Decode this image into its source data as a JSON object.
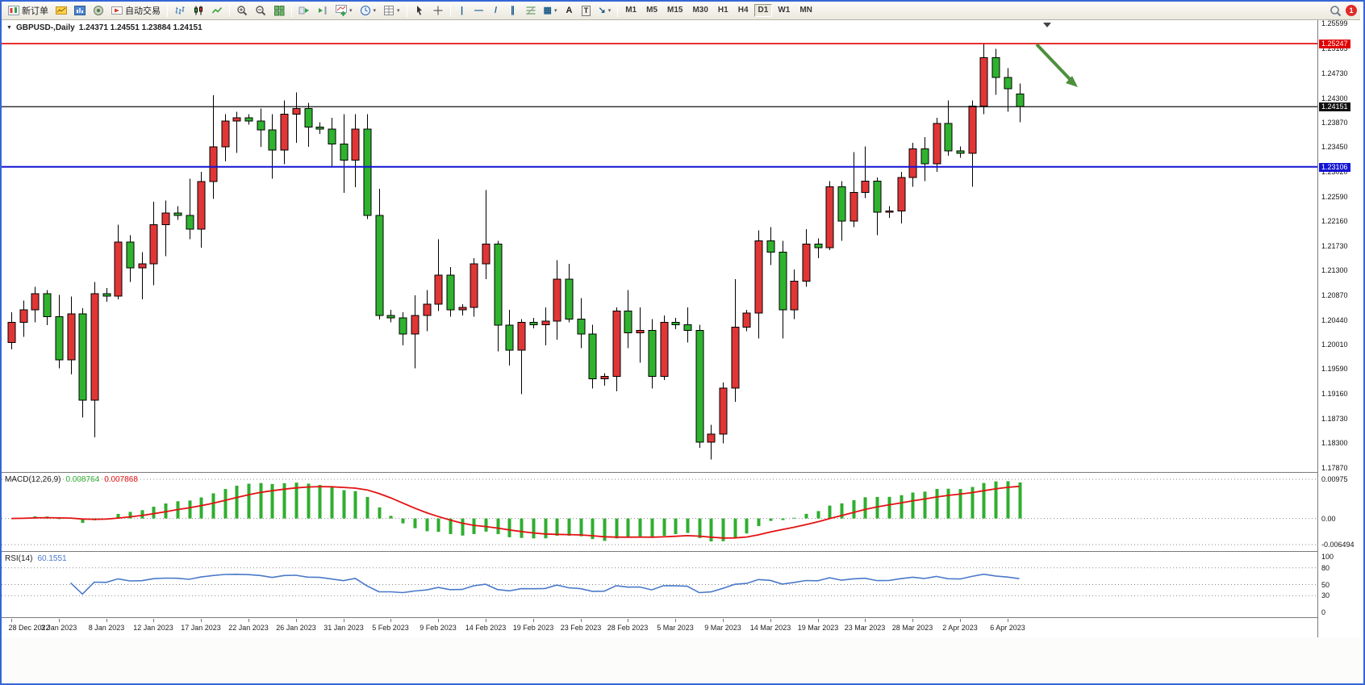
{
  "toolbar": {
    "new_order_label": "新订单",
    "auto_trading_label": "自动交易",
    "timeframes": [
      "M1",
      "M5",
      "M15",
      "M30",
      "H1",
      "H4",
      "D1",
      "W1",
      "MN"
    ],
    "active_timeframe": "D1",
    "notification_count": "1"
  },
  "icons": {
    "menu_triangle": "▼",
    "caret": "▾",
    "vertical_line": "|",
    "horizontal_line": "—",
    "trendline": "/",
    "channel": "∥",
    "shapes": "▦",
    "text": "A",
    "text_label": "T",
    "arrows": "↘"
  },
  "chart_header": {
    "symbol_period": "GBPUSD-,Daily",
    "ohlc": "1.24371 1.24551 1.23884 1.24151"
  },
  "price_axis": {
    "max": 1.25599,
    "min": 1.1787,
    "labels": [
      "1.25599",
      "1.25165",
      "1.24730",
      "1.24300",
      "1.23870",
      "1.23450",
      "1.23020",
      "1.22590",
      "1.22160",
      "1.21730",
      "1.21300",
      "1.20870",
      "1.20440",
      "1.20010",
      "1.19590",
      "1.19160",
      "1.18730",
      "1.18300",
      "1.17870"
    ]
  },
  "hlines": [
    {
      "name": "resistance",
      "price": 1.25247,
      "label": "1.25247",
      "color": "#e00000",
      "width": 1.6
    },
    {
      "name": "bid",
      "price": 1.24151,
      "label": "1.24151",
      "color": "#111111",
      "width": 1.2
    },
    {
      "name": "support",
      "price": 1.23106,
      "label": "1.23106",
      "color": "#1414d4",
      "width": 2
    }
  ],
  "annotation_arrow": {
    "color": "#4e8f3c"
  },
  "macd_panel": {
    "label": "MACD(12,26,9)",
    "main_value": "0.008764",
    "signal_value": "0.007868",
    "fast": 12,
    "slow": 26,
    "signal": 9,
    "max": 0.00975,
    "min": -0.006494,
    "scale_labels": [
      "0.00975",
      "0.00",
      "-0.006494"
    ],
    "histogram_color": "#2fae2f",
    "signal_color": "#e31212"
  },
  "rsi_panel": {
    "label": "RSI(14)",
    "value": "60.1551",
    "period": 14,
    "scale_labels": [
      100,
      80,
      50,
      30,
      0
    ],
    "dashed_levels": [
      80,
      50,
      30
    ],
    "line_color": "#4a79c9"
  },
  "chart_data": {
    "type": "candlestick",
    "symbol": "GBPUSD",
    "period": "Daily",
    "up_color": "#e03636",
    "down_color": "#2fb32f",
    "color_convention": "chinese (red=up, green=down)",
    "x_label_step": 4,
    "candles": [
      [
        "28 Dec 2022",
        1.2005,
        1.2058,
        1.1993,
        1.204
      ],
      [
        "29 Dec 2022",
        1.204,
        1.2078,
        1.2015,
        1.2062
      ],
      [
        "30 Dec 2022",
        1.2062,
        1.2102,
        1.204,
        1.209
      ],
      [
        "2 Jan 2023",
        1.209,
        1.2096,
        1.2035,
        1.205
      ],
      [
        "3 Jan 2023",
        1.205,
        1.2088,
        1.196,
        1.1975
      ],
      [
        "4 Jan 2023",
        1.1975,
        1.2085,
        1.195,
        1.2055
      ],
      [
        "5 Jan 2023",
        1.2055,
        1.2065,
        1.1875,
        1.1905
      ],
      [
        "6 Jan 2023",
        1.1905,
        1.211,
        1.184,
        1.209
      ],
      [
        "8 Jan 2023",
        1.209,
        1.21,
        1.2076,
        1.2086
      ],
      [
        "9 Jan 2023",
        1.2086,
        1.221,
        1.208,
        1.218
      ],
      [
        "10 Jan 2023",
        1.218,
        1.2192,
        1.211,
        1.2135
      ],
      [
        "11 Jan 2023",
        1.2135,
        1.2162,
        1.208,
        1.2142
      ],
      [
        "12 Jan 2023",
        1.2142,
        1.225,
        1.2105,
        1.221
      ],
      [
        "13 Jan 2023",
        1.221,
        1.2252,
        1.2155,
        1.223
      ],
      [
        "15 Jan 2023",
        1.223,
        1.2242,
        1.2218,
        1.2226
      ],
      [
        "16 Jan 2023",
        1.2226,
        1.229,
        1.2185,
        1.2202
      ],
      [
        "17 Jan 2023",
        1.2202,
        1.2302,
        1.217,
        1.2285
      ],
      [
        "18 Jan 2023",
        1.2285,
        1.2435,
        1.2255,
        1.2345
      ],
      [
        "19 Jan 2023",
        1.2345,
        1.2402,
        1.232,
        1.239
      ],
      [
        "20 Jan 2023",
        1.239,
        1.2406,
        1.2335,
        1.2396
      ],
      [
        "22 Jan 2023",
        1.2396,
        1.2402,
        1.2384,
        1.239
      ],
      [
        "23 Jan 2023",
        1.239,
        1.2412,
        1.2345,
        1.2375
      ],
      [
        "24 Jan 2023",
        1.2375,
        1.2402,
        1.229,
        1.234
      ],
      [
        "25 Jan 2023",
        1.234,
        1.2426,
        1.2315,
        1.2402
      ],
      [
        "26 Jan 2023",
        1.2402,
        1.244,
        1.2352,
        1.2412
      ],
      [
        "27 Jan 2023",
        1.2412,
        1.2422,
        1.2345,
        1.238
      ],
      [
        "29 Jan 2023",
        1.238,
        1.2388,
        1.2368,
        1.2376
      ],
      [
        "30 Jan 2023",
        1.2376,
        1.2396,
        1.231,
        1.235
      ],
      [
        "31 Jan 2023",
        1.235,
        1.2402,
        1.2265,
        1.2322
      ],
      [
        "1 Feb 2023",
        1.2322,
        1.2402,
        1.2275,
        1.2376
      ],
      [
        "2 Feb 2023",
        1.2376,
        1.2402,
        1.222,
        1.2226
      ],
      [
        "3 Feb 2023",
        1.2226,
        1.2272,
        1.2045,
        1.2052
      ],
      [
        "5 Feb 2023",
        1.2052,
        1.2062,
        1.204,
        1.2048
      ],
      [
        "6 Feb 2023",
        1.2048,
        1.2058,
        1.2,
        1.202
      ],
      [
        "7 Feb 2023",
        1.202,
        1.2087,
        1.196,
        1.2052
      ],
      [
        "8 Feb 2023",
        1.2052,
        1.2096,
        1.2025,
        1.2072
      ],
      [
        "9 Feb 2023",
        1.2072,
        1.2185,
        1.206,
        1.2122
      ],
      [
        "10 Feb 2023",
        1.2122,
        1.2136,
        1.205,
        1.2062
      ],
      [
        "12 Feb 2023",
        1.2062,
        1.2072,
        1.2052,
        1.2066
      ],
      [
        "13 Feb 2023",
        1.2066,
        1.2152,
        1.205,
        1.2142
      ],
      [
        "14 Feb 2023",
        1.2142,
        1.227,
        1.2115,
        1.2176
      ],
      [
        "15 Feb 2023",
        1.2176,
        1.2182,
        1.199,
        1.2035
      ],
      [
        "16 Feb 2023",
        1.2035,
        1.2062,
        1.1965,
        1.1992
      ],
      [
        "17 Feb 2023",
        1.1992,
        1.2046,
        1.1915,
        1.204
      ],
      [
        "19 Feb 2023",
        1.204,
        1.2048,
        1.203,
        1.2036
      ],
      [
        "20 Feb 2023",
        1.2036,
        1.2066,
        1.2,
        1.2042
      ],
      [
        "21 Feb 2023",
        1.2042,
        1.2148,
        1.201,
        1.2115
      ],
      [
        "22 Feb 2023",
        1.2115,
        1.2142,
        1.204,
        1.2046
      ],
      [
        "23 Feb 2023",
        1.2046,
        1.2082,
        1.1995,
        1.202
      ],
      [
        "24 Feb 2023",
        1.202,
        1.2036,
        1.1925,
        1.1942
      ],
      [
        "26 Feb 2023",
        1.1942,
        1.1952,
        1.193,
        1.1946
      ],
      [
        "27 Feb 2023",
        1.1946,
        1.2066,
        1.192,
        1.206
      ],
      [
        "28 Feb 2023",
        1.206,
        1.2096,
        1.1995,
        1.2022
      ],
      [
        "1 Mar 2023",
        1.2022,
        1.2066,
        1.197,
        1.2026
      ],
      [
        "2 Mar 2023",
        1.2026,
        1.2046,
        1.1925,
        1.1946
      ],
      [
        "3 Mar 2023",
        1.1946,
        1.2052,
        1.194,
        1.204
      ],
      [
        "5 Mar 2023",
        1.204,
        1.2048,
        1.2028,
        1.2036
      ],
      [
        "6 Mar 2023",
        1.2036,
        1.2066,
        1.2005,
        1.2026
      ],
      [
        "7 Mar 2023",
        1.2026,
        1.2036,
        1.1822,
        1.1832
      ],
      [
        "8 Mar 2023",
        1.1832,
        1.1862,
        1.1802,
        1.1846
      ],
      [
        "9 Mar 2023",
        1.1846,
        1.1936,
        1.183,
        1.1926
      ],
      [
        "10 Mar 2023",
        1.1926,
        1.2115,
        1.1902,
        1.2032
      ],
      [
        "12 Mar 2023",
        1.2032,
        1.2062,
        1.2025,
        1.2056
      ],
      [
        "13 Mar 2023",
        1.2056,
        1.22,
        1.2012,
        1.2182
      ],
      [
        "14 Mar 2023",
        1.2182,
        1.2206,
        1.214,
        1.2162
      ],
      [
        "15 Mar 2023",
        1.2162,
        1.2182,
        1.2012,
        1.2062
      ],
      [
        "16 Mar 2023",
        1.2062,
        1.2132,
        1.2046,
        1.2112
      ],
      [
        "17 Mar 2023",
        1.2112,
        1.2202,
        1.2102,
        1.2176
      ],
      [
        "19 Mar 2023",
        1.2176,
        1.2186,
        1.2152,
        1.217
      ],
      [
        "20 Mar 2023",
        1.217,
        1.2286,
        1.2166,
        1.2276
      ],
      [
        "21 Mar 2023",
        1.2276,
        1.2286,
        1.2182,
        1.2216
      ],
      [
        "22 Mar 2023",
        1.2216,
        1.2336,
        1.2206,
        1.2266
      ],
      [
        "23 Mar 2023",
        1.2266,
        1.2346,
        1.2256,
        1.2286
      ],
      [
        "24 Mar 2023",
        1.2286,
        1.2292,
        1.2192,
        1.2232
      ],
      [
        "26 Mar 2023",
        1.2232,
        1.2242,
        1.2222,
        1.2234
      ],
      [
        "27 Mar 2023",
        1.2234,
        1.2302,
        1.2212,
        1.2292
      ],
      [
        "28 Mar 2023",
        1.2292,
        1.2352,
        1.2276,
        1.2342
      ],
      [
        "29 Mar 2023",
        1.2342,
        1.2362,
        1.2286,
        1.2316
      ],
      [
        "30 Mar 2023",
        1.2316,
        1.2396,
        1.2302,
        1.2386
      ],
      [
        "31 Mar 2023",
        1.2386,
        1.2426,
        1.233,
        1.2338
      ],
      [
        "2 Apr 2023",
        1.2338,
        1.2346,
        1.2326,
        1.2334
      ],
      [
        "3 Apr 2023",
        1.2334,
        1.2426,
        1.2276,
        1.2416
      ],
      [
        "4 Apr 2023",
        1.2416,
        1.2525,
        1.2402,
        1.25
      ],
      [
        "5 Apr 2023",
        1.25,
        1.2516,
        1.2436,
        1.2466
      ],
      [
        "6 Apr 2023",
        1.2466,
        1.2482,
        1.2406,
        1.2446
      ],
      [
        "7 Apr 2023",
        1.24371,
        1.24551,
        1.23884,
        1.24151
      ]
    ]
  }
}
